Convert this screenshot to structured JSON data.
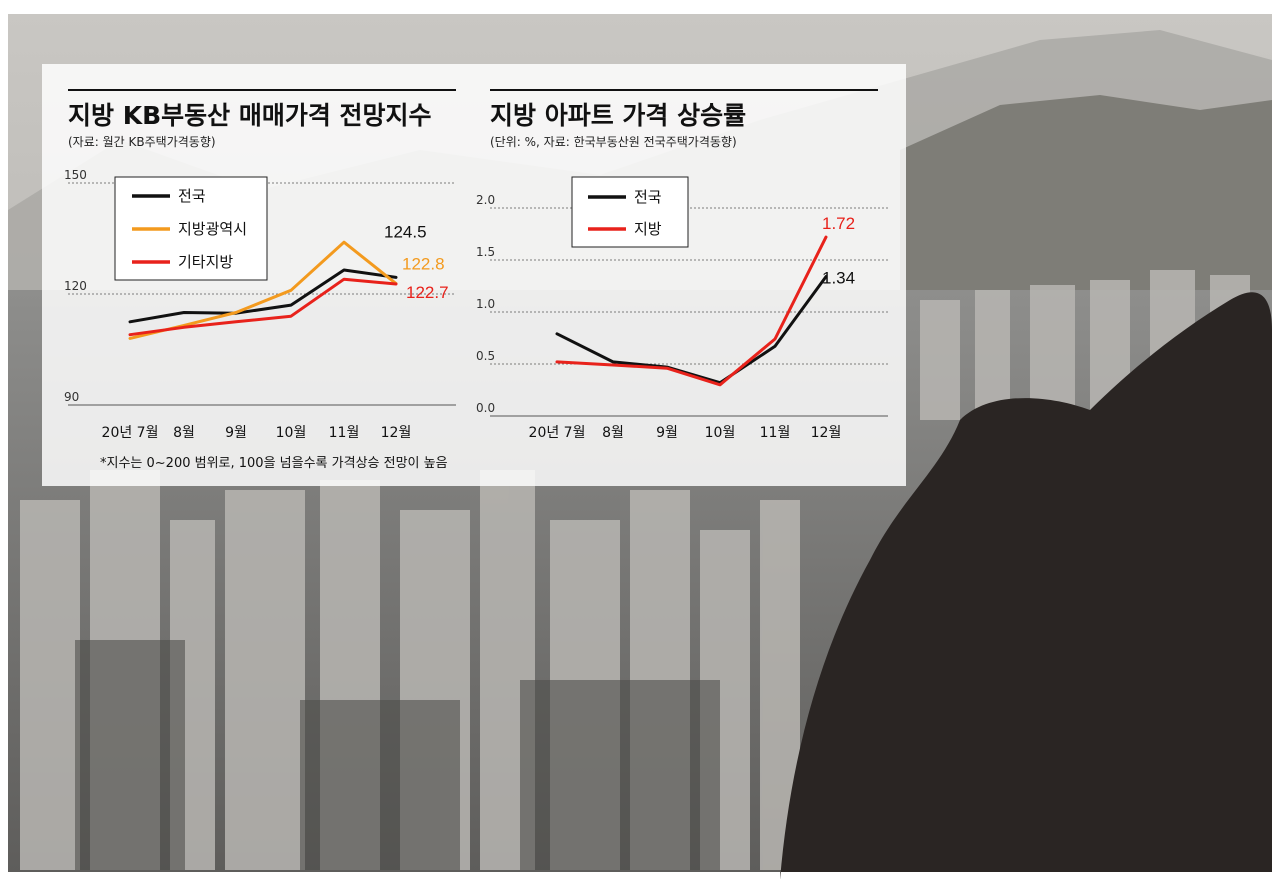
{
  "colors": {
    "national": "#111111",
    "metro": "#f39a1e",
    "other": "#e8221b",
    "regional": "#e8221b"
  },
  "chart_data": [
    {
      "type": "line",
      "title": "지방 KB부동산 매매가격 전망지수",
      "subtitle": "(자료: 월간 KB주택가격동향)",
      "categories": [
        "20년 7월",
        "8월",
        "9월",
        "10월",
        "11월",
        "12월"
      ],
      "ylim": [
        90,
        150
      ],
      "yticks": [
        150,
        120,
        90
      ],
      "grid": true,
      "legend": "top-left",
      "series": [
        {
          "name": "전국",
          "color_key": "national",
          "values": [
            112.5,
            115.0,
            114.8,
            117.0,
            126.5,
            124.5
          ]
        },
        {
          "name": "지방광역시",
          "color_key": "metro",
          "values": [
            108.0,
            111.5,
            115.0,
            121.0,
            134.0,
            122.8
          ]
        },
        {
          "name": "기타지방",
          "color_key": "other",
          "values": [
            109.0,
            111.0,
            112.5,
            114.0,
            124.0,
            122.7
          ]
        }
      ],
      "data_labels": [
        {
          "series": 0,
          "index": 5,
          "text": "124.5"
        },
        {
          "series": 1,
          "index": 5,
          "text": "122.8"
        },
        {
          "series": 2,
          "index": 5,
          "text": "122.7"
        }
      ],
      "footnote": "*지수는 0~200 범위로, 100을 넘을수록 가격상승 전망이 높음"
    },
    {
      "type": "line",
      "title": "지방 아파트 가격 상승률",
      "subtitle": "(단위: %, 자료: 한국부동산원 전국주택가격동향)",
      "categories": [
        "20년 7월",
        "8월",
        "9월",
        "10월",
        "11월",
        "12월"
      ],
      "ylim": [
        0.0,
        2.0
      ],
      "yticks": [
        "2.0",
        "1.5",
        "1.0",
        "0.5",
        "0.0"
      ],
      "grid": true,
      "legend": "top-left",
      "series": [
        {
          "name": "전국",
          "color_key": "national",
          "values": [
            0.79,
            0.52,
            0.47,
            0.32,
            0.67,
            1.34
          ]
        },
        {
          "name": "지방",
          "color_key": "regional",
          "values": [
            0.52,
            0.49,
            0.46,
            0.3,
            0.74,
            1.72
          ]
        }
      ],
      "data_labels": [
        {
          "series": 0,
          "index": 5,
          "text": "1.34"
        },
        {
          "series": 1,
          "index": 5,
          "text": "1.72"
        }
      ]
    }
  ]
}
